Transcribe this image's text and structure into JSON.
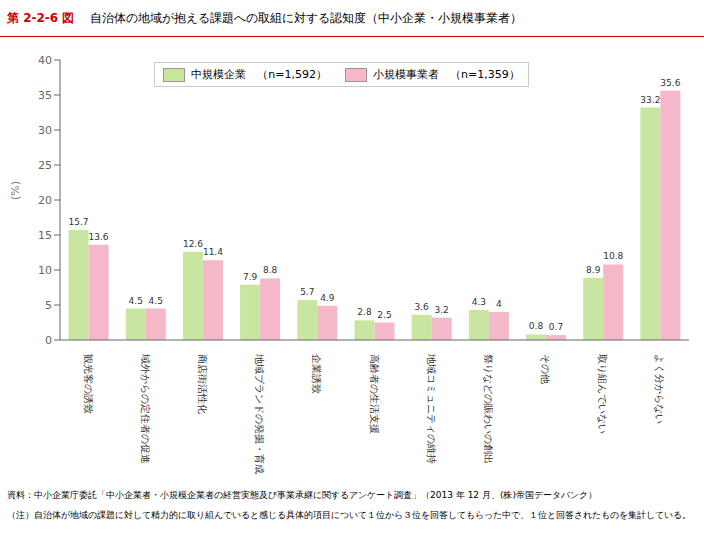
{
  "chart_data": {
    "type": "bar",
    "title": "自治体の地域が抱える課題への取組に対する認知度（中小企業・小規模事業者）",
    "annotations": [
      "第 2-2-6 図",
      "資料：中小企業庁委託「中小企業者・小規模企業者の経営実態及び事業承継に関するアンケート調査」（2013 年 12 月、(株)帝国データバンク）",
      "（注）自治体が地域の課題に対して精力的に取り組んでいると感じる具体的項目について１位から３位を回答してもらった中で、１位と回答されたものを集計している。"
    ],
    "ylabel": "(%)",
    "categories": [
      "観光客の誘致",
      "域外からの定住者の促進",
      "商店街活性化",
      "地域ブランドの発掘・育成",
      "企業誘致",
      "高齢者の生活支援",
      "地域コミュニティの維持",
      "祭りなどの賑わいの創出",
      "その他",
      "取り組んでいない",
      "よく分からない"
    ],
    "series": [
      {
        "name": "中規模企業　（n=1,592）",
        "color": "#c8e6a0",
        "values": [
          15.7,
          4.5,
          12.6,
          7.9,
          5.7,
          2.8,
          3.6,
          4.3,
          0.8,
          8.9,
          33.2
        ]
      },
      {
        "name": "小規模事業者　（n=1,359）",
        "color": "#f4b8c8",
        "values": [
          13.6,
          4.5,
          11.4,
          8.8,
          4.9,
          2.5,
          3.2,
          4.0,
          0.7,
          10.8,
          35.6
        ]
      }
    ],
    "ylim": [
      0,
      40
    ],
    "yticks": [
      0,
      5,
      10,
      15,
      20,
      25,
      30,
      35,
      40
    ],
    "grid": false,
    "legend": "upper left",
    "data_labels": true
  }
}
